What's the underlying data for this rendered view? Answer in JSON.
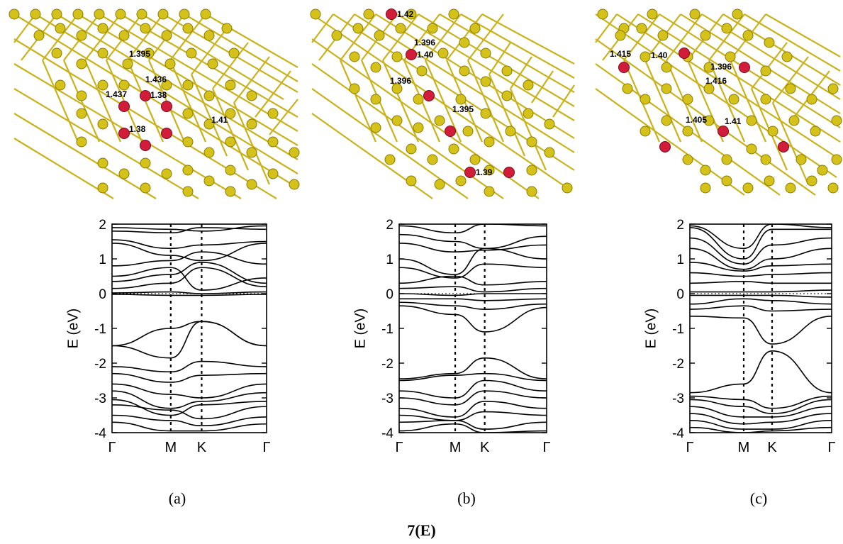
{
  "colors": {
    "carbon": "#d4c21b",
    "carbon_edge": "#8a7a00",
    "dopant": "#d21d3a",
    "dopant_edge": "#7a0a1c",
    "band": "#000000"
  },
  "figure_label": "7(E)",
  "chart_data": [
    {
      "type": "line",
      "panel_label": "(a)",
      "ylabel": "E (eV)",
      "ylim": [
        -4,
        2
      ],
      "yticks": [
        "2",
        "1",
        "0",
        "-1",
        "-2",
        "-3",
        "-4"
      ],
      "xticks": [
        "Γ",
        "M",
        "K",
        "Γ"
      ],
      "k_positions": [
        0,
        0.38,
        0.58,
        1
      ],
      "fermi_level": 0,
      "bond_labels": [
        "1.395",
        "1.436",
        "1.437",
        "1.38",
        "1.38",
        "1.41"
      ],
      "series": [
        {
          "values": [
            1.9,
            1.85,
            1.8,
            1.95
          ]
        },
        {
          "values": [
            1.8,
            1.75,
            1.9,
            1.85
          ]
        },
        {
          "values": [
            1.55,
            1.3,
            1.4,
            1.5
          ]
        },
        {
          "values": [
            1.45,
            1.1,
            0.95,
            1.45
          ]
        },
        {
          "values": [
            0.8,
            0.95,
            1.2,
            0.85
          ]
        },
        {
          "values": [
            0.5,
            0.75,
            0.1,
            0.45
          ]
        },
        {
          "values": [
            0.35,
            0.55,
            0.9,
            0.3
          ]
        },
        {
          "values": [
            0.15,
            0.3,
            0.75,
            0.2
          ]
        },
        {
          "values": [
            0.02,
            0.05,
            0.0,
            0.05
          ]
        },
        {
          "values": [
            -0.02,
            -0.05,
            -0.05,
            -0.02
          ]
        },
        {
          "values": [
            -1.5,
            -1.0,
            -0.8,
            -1.5
          ]
        },
        {
          "values": [
            -1.5,
            -1.85,
            -0.8,
            -1.5
          ]
        },
        {
          "values": [
            -2.1,
            -2.25,
            -1.95,
            -2.1
          ]
        },
        {
          "values": [
            -2.3,
            -2.55,
            -2.35,
            -2.3
          ]
        },
        {
          "values": [
            -2.6,
            -2.9,
            -3.0,
            -2.6
          ]
        },
        {
          "values": [
            -2.8,
            -3.3,
            -3.1,
            -2.85
          ]
        },
        {
          "values": [
            -3.05,
            -3.5,
            -3.2,
            -3.1
          ]
        },
        {
          "values": [
            -3.2,
            -3.35,
            -3.6,
            -3.25
          ]
        },
        {
          "values": [
            -3.5,
            -3.65,
            -3.8,
            -3.55
          ]
        },
        {
          "values": [
            -3.7,
            -3.95,
            -3.95,
            -3.75
          ]
        }
      ]
    },
    {
      "type": "line",
      "panel_label": "(b)",
      "ylabel": "E (eV)",
      "ylim": [
        -4,
        2
      ],
      "yticks": [
        "2",
        "1",
        "0",
        "-1",
        "-2",
        "-3",
        "-4"
      ],
      "xticks": [
        "Γ",
        "M",
        "K",
        "Γ"
      ],
      "k_positions": [
        0,
        0.38,
        0.58,
        1
      ],
      "fermi_level": 0,
      "bond_labels": [
        "1.42",
        "1.396",
        "1.40",
        "1.396",
        "1.395",
        "1.39"
      ],
      "series": [
        {
          "values": [
            1.95,
            1.75,
            2.0,
            1.95
          ]
        },
        {
          "values": [
            1.7,
            1.5,
            1.3,
            1.65
          ]
        },
        {
          "values": [
            1.45,
            1.2,
            1.25,
            1.4
          ]
        },
        {
          "values": [
            1.0,
            0.55,
            1.3,
            1.0
          ]
        },
        {
          "values": [
            0.75,
            0.45,
            0.85,
            0.75
          ]
        },
        {
          "values": [
            0.3,
            0.5,
            0.25,
            0.35
          ]
        },
        {
          "values": [
            0.15,
            0.2,
            0.05,
            0.15
          ]
        },
        {
          "values": [
            0.0,
            -0.05,
            0.0,
            0.0
          ]
        },
        {
          "values": [
            -0.15,
            -0.15,
            -0.2,
            -0.15
          ]
        },
        {
          "values": [
            -0.25,
            -0.35,
            -0.45,
            -0.3
          ]
        },
        {
          "values": [
            -0.35,
            -0.6,
            -1.1,
            -0.4
          ]
        },
        {
          "values": [
            -2.45,
            -2.3,
            -1.85,
            -2.45
          ]
        },
        {
          "values": [
            -2.5,
            -2.35,
            -2.3,
            -2.5
          ]
        },
        {
          "values": [
            -2.8,
            -3.0,
            -2.5,
            -2.8
          ]
        },
        {
          "values": [
            -3.0,
            -3.2,
            -2.8,
            -3.0
          ]
        },
        {
          "values": [
            -3.3,
            -3.55,
            -3.1,
            -3.3
          ]
        },
        {
          "values": [
            -3.5,
            -3.65,
            -3.4,
            -3.5
          ]
        },
        {
          "values": [
            -3.7,
            -3.65,
            -3.9,
            -3.7
          ]
        },
        {
          "values": [
            -3.95,
            -3.75,
            -4.0,
            -3.95
          ]
        }
      ]
    },
    {
      "type": "line",
      "panel_label": "(c)",
      "ylabel": "E (eV)",
      "ylim": [
        -4,
        2
      ],
      "yticks": [
        "2",
        "1",
        "0",
        "-1",
        "-2",
        "-3",
        "-4"
      ],
      "xticks": [
        "Γ",
        "M",
        "K",
        "Γ"
      ],
      "k_positions": [
        0,
        0.38,
        0.58,
        1
      ],
      "fermi_level": 0,
      "bond_labels": [
        "1.415",
        "1.40",
        "1.396",
        "1.416",
        "1.405",
        "1.41"
      ],
      "series": [
        {
          "values": [
            1.95,
            1.3,
            2.0,
            1.9
          ]
        },
        {
          "values": [
            1.9,
            1.0,
            1.85,
            1.85
          ]
        },
        {
          "values": [
            1.6,
            0.85,
            1.4,
            1.6
          ]
        },
        {
          "values": [
            1.3,
            0.7,
            1.0,
            1.3
          ]
        },
        {
          "values": [
            0.9,
            0.65,
            0.8,
            0.85
          ]
        },
        {
          "values": [
            0.6,
            0.5,
            0.55,
            0.6
          ]
        },
        {
          "values": [
            0.3,
            0.35,
            0.3,
            0.3
          ]
        },
        {
          "values": [
            0.05,
            0.05,
            0.05,
            0.1
          ]
        },
        {
          "values": [
            -0.05,
            -0.05,
            -0.05,
            -0.1
          ]
        },
        {
          "values": [
            -0.3,
            -0.15,
            -0.2,
            -0.3
          ]
        },
        {
          "values": [
            -0.45,
            -0.35,
            -0.5,
            -0.45
          ]
        },
        {
          "values": [
            -0.65,
            -0.7,
            -1.45,
            -0.65
          ]
        },
        {
          "values": [
            -2.85,
            -2.6,
            -1.65,
            -2.85
          ]
        },
        {
          "values": [
            -2.95,
            -3.05,
            -3.3,
            -2.95
          ]
        },
        {
          "values": [
            -3.05,
            -3.25,
            -3.45,
            -3.05
          ]
        },
        {
          "values": [
            -3.25,
            -3.55,
            -3.55,
            -3.25
          ]
        },
        {
          "values": [
            -3.45,
            -3.75,
            -3.7,
            -3.45
          ]
        },
        {
          "values": [
            -3.65,
            -3.9,
            -3.9,
            -3.65
          ]
        },
        {
          "values": [
            -3.85,
            -4.0,
            -3.95,
            -3.85
          ]
        }
      ]
    }
  ]
}
